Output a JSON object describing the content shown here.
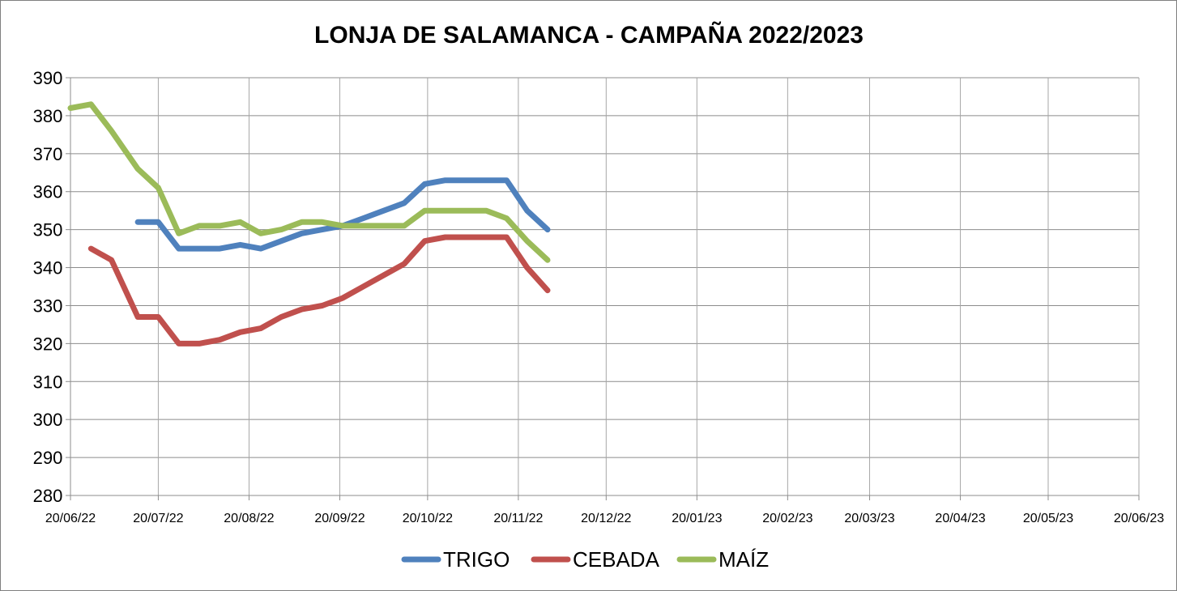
{
  "chart_data": {
    "type": "line",
    "title": "LONJA DE SALAMANCA - CAMPAÑA 2022/2023",
    "xlabel": "",
    "ylabel": "",
    "ylim": [
      280,
      390
    ],
    "y_ticks": [
      280,
      290,
      300,
      310,
      320,
      330,
      340,
      350,
      360,
      370,
      380,
      390
    ],
    "x_tick_labels": [
      "20/06/22",
      "20/07/22",
      "20/08/22",
      "20/09/22",
      "20/10/22",
      "20/11/22",
      "20/12/22",
      "20/01/23",
      "20/02/23",
      "20/03/23",
      "20/04/23",
      "20/05/23",
      "20/06/23"
    ],
    "x_tick_dates": [
      "2022-06-20",
      "2022-07-20",
      "2022-08-20",
      "2022-09-20",
      "2022-10-20",
      "2022-11-20",
      "2022-12-20",
      "2023-01-20",
      "2023-02-20",
      "2023-03-20",
      "2023-04-20",
      "2023-05-20",
      "2023-06-20"
    ],
    "xlim": [
      "2022-06-20",
      "2023-06-20"
    ],
    "grid": true,
    "legend_position": "bottom",
    "series": [
      {
        "name": "TRIGO",
        "color": "#4f81bd",
        "points": [
          [
            "2022-07-13",
            352
          ],
          [
            "2022-07-20",
            352
          ],
          [
            "2022-07-27",
            345
          ],
          [
            "2022-08-03",
            345
          ],
          [
            "2022-08-10",
            345
          ],
          [
            "2022-08-17",
            346
          ],
          [
            "2022-08-24",
            345
          ],
          [
            "2022-08-31",
            347
          ],
          [
            "2022-09-07",
            349
          ],
          [
            "2022-09-14",
            350
          ],
          [
            "2022-09-21",
            351
          ],
          [
            "2022-09-28",
            353
          ],
          [
            "2022-10-05",
            355
          ],
          [
            "2022-10-12",
            357
          ],
          [
            "2022-10-19",
            362
          ],
          [
            "2022-10-26",
            363
          ],
          [
            "2022-11-02",
            363
          ],
          [
            "2022-11-09",
            363
          ],
          [
            "2022-11-16",
            363
          ],
          [
            "2022-11-23",
            355
          ],
          [
            "2022-11-30",
            350
          ]
        ]
      },
      {
        "name": "CEBADA",
        "color": "#c0504d",
        "points": [
          [
            "2022-06-27",
            345
          ],
          [
            "2022-07-04",
            342
          ],
          [
            "2022-07-13",
            327
          ],
          [
            "2022-07-20",
            327
          ],
          [
            "2022-07-27",
            320
          ],
          [
            "2022-08-03",
            320
          ],
          [
            "2022-08-10",
            321
          ],
          [
            "2022-08-17",
            323
          ],
          [
            "2022-08-24",
            324
          ],
          [
            "2022-08-31",
            327
          ],
          [
            "2022-09-07",
            329
          ],
          [
            "2022-09-14",
            330
          ],
          [
            "2022-09-21",
            332
          ],
          [
            "2022-09-28",
            335
          ],
          [
            "2022-10-05",
            338
          ],
          [
            "2022-10-12",
            341
          ],
          [
            "2022-10-19",
            347
          ],
          [
            "2022-10-26",
            348
          ],
          [
            "2022-11-02",
            348
          ],
          [
            "2022-11-09",
            348
          ],
          [
            "2022-11-16",
            348
          ],
          [
            "2022-11-23",
            340
          ],
          [
            "2022-11-30",
            334
          ]
        ]
      },
      {
        "name": "MAÍZ",
        "color": "#9bbb59",
        "points": [
          [
            "2022-06-20",
            382
          ],
          [
            "2022-06-27",
            383
          ],
          [
            "2022-07-04",
            376
          ],
          [
            "2022-07-13",
            366
          ],
          [
            "2022-07-20",
            361
          ],
          [
            "2022-07-27",
            349
          ],
          [
            "2022-08-03",
            351
          ],
          [
            "2022-08-10",
            351
          ],
          [
            "2022-08-17",
            352
          ],
          [
            "2022-08-24",
            349
          ],
          [
            "2022-08-31",
            350
          ],
          [
            "2022-09-07",
            352
          ],
          [
            "2022-09-14",
            352
          ],
          [
            "2022-09-21",
            351
          ],
          [
            "2022-09-28",
            351
          ],
          [
            "2022-10-05",
            351
          ],
          [
            "2022-10-12",
            351
          ],
          [
            "2022-10-19",
            355
          ],
          [
            "2022-10-26",
            355
          ],
          [
            "2022-11-02",
            355
          ],
          [
            "2022-11-09",
            355
          ],
          [
            "2022-11-16",
            353
          ],
          [
            "2022-11-23",
            347
          ],
          [
            "2022-11-30",
            342
          ]
        ]
      }
    ]
  }
}
